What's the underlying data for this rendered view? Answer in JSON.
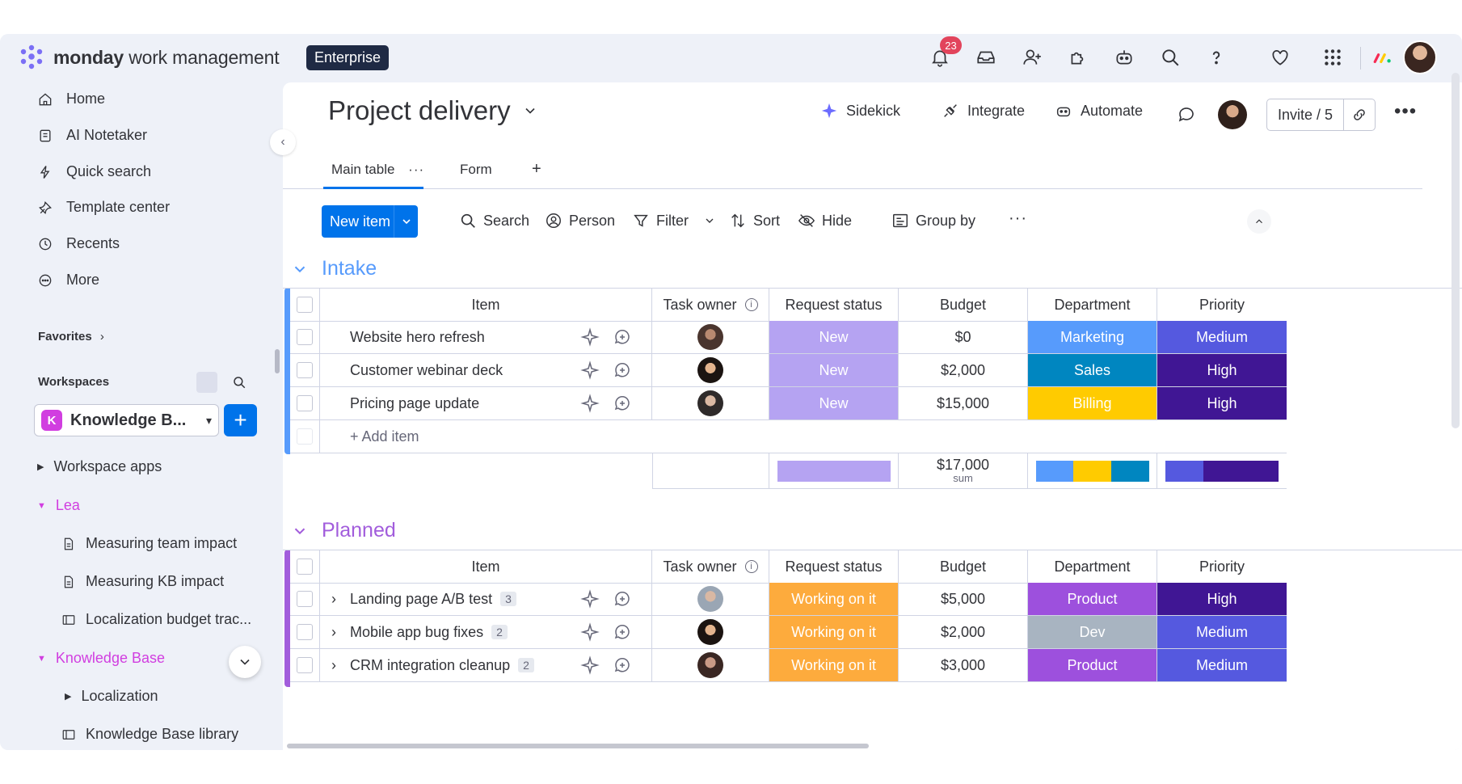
{
  "app": {
    "brand_bold": "monday",
    "brand_rest": "work management",
    "plan_badge": "Enterprise",
    "notifications_count": "23"
  },
  "sidebar": {
    "nav": [
      {
        "label": "Home",
        "icon": "home-icon"
      },
      {
        "label": "AI Notetaker",
        "icon": "notetaker-icon"
      },
      {
        "label": "Quick search",
        "icon": "lightning-icon"
      },
      {
        "label": "Template center",
        "icon": "template-icon"
      },
      {
        "label": "Recents",
        "icon": "clock-icon"
      },
      {
        "label": "More",
        "icon": "more-circle-icon"
      }
    ],
    "favorites_label": "Favorites",
    "workspaces_label": "Workspaces",
    "workspace_initial": "K",
    "workspace_name": "Knowledge B...",
    "tree": {
      "workspace_apps": "Workspace apps",
      "folder_lea": "Lea",
      "lea_items": [
        "Measuring team impact",
        "Measuring KB impact",
        "Localization budget trac..."
      ],
      "folder_kb": "Knowledge Base",
      "kb_items": [
        "Localization",
        "Knowledge Base library"
      ]
    }
  },
  "header": {
    "title": "Project delivery",
    "sidekick": "Sidekick",
    "integrate": "Integrate",
    "automate": "Automate",
    "invite": "Invite / 5"
  },
  "tabs": {
    "main_table": "Main table",
    "form": "Form",
    "add": "+"
  },
  "toolbar": {
    "new_item": "New item",
    "search": "Search",
    "person": "Person",
    "filter": "Filter",
    "sort": "Sort",
    "hide": "Hide",
    "group_by": "Group by"
  },
  "columns": {
    "item": "Item",
    "task_owner": "Task owner",
    "request_status": "Request status",
    "budget": "Budget",
    "department": "Department",
    "priority": "Priority"
  },
  "groups": {
    "intake": {
      "title": "Intake",
      "color": "#579bfc",
      "rows": [
        {
          "item": "Website hero refresh",
          "status": "New",
          "status_color": "#b5a3f2",
          "budget": "$0",
          "department": "Marketing",
          "dept_color": "#579bfc",
          "priority": "Medium",
          "prio_color": "#5559df"
        },
        {
          "item": "Customer webinar deck",
          "status": "New",
          "status_color": "#b5a3f2",
          "budget": "$2,000",
          "department": "Sales",
          "dept_color": "#0086c0",
          "priority": "High",
          "prio_color": "#401694"
        },
        {
          "item": "Pricing page update",
          "status": "New",
          "status_color": "#b5a3f2",
          "budget": "$15,000",
          "department": "Billing",
          "dept_color": "#ffcb00",
          "priority": "High",
          "prio_color": "#401694"
        }
      ],
      "add_item": "+ Add item",
      "sum_value": "$17,000",
      "sum_label": "sum"
    },
    "planned": {
      "title": "Planned",
      "color": "#a25ddc",
      "rows": [
        {
          "item": "Landing page A/B test",
          "subitems": "3",
          "status": "Working on it",
          "status_color": "#fdab3d",
          "budget": "$5,000",
          "department": "Product",
          "dept_color": "#9d50dd",
          "priority": "High",
          "prio_color": "#401694"
        },
        {
          "item": "Mobile app bug fixes",
          "subitems": "2",
          "status": "Working on it",
          "status_color": "#fdab3d",
          "budget": "$2,000",
          "department": "Dev",
          "dept_color": "#a8b4c1",
          "priority": "Medium",
          "prio_color": "#5559df"
        },
        {
          "item": "CRM integration cleanup",
          "subitems": "2",
          "status": "Working on it",
          "status_color": "#fdab3d",
          "budget": "$3,000",
          "department": "Product",
          "dept_color": "#9d50dd",
          "priority": "Medium",
          "prio_color": "#5559df"
        }
      ]
    }
  }
}
